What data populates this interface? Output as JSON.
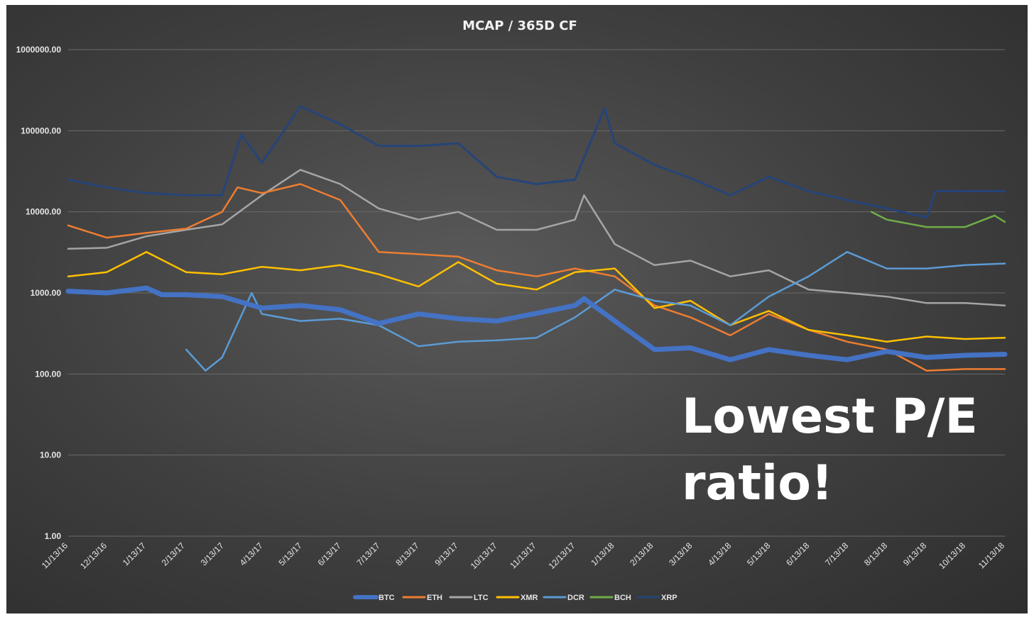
{
  "chart_data": {
    "type": "line",
    "title": "MCAP / 365D CF",
    "xlabel": "",
    "ylabel": "",
    "y_scale": "log",
    "ylim": [
      1,
      1000000
    ],
    "y_ticks": [
      "1000000.00",
      "100000.00",
      "10000.00",
      "1000.00",
      "100.00",
      "10.00",
      "1.00"
    ],
    "x_range": [
      "2016-11-13",
      "2018-11-13"
    ],
    "x_tick_labels": [
      "11/13/16",
      "12/13/16",
      "1/13/17",
      "2/13/17",
      "3/13/17",
      "4/13/17",
      "5/13/17",
      "6/13/17",
      "7/13/17",
      "8/13/17",
      "9/13/17",
      "10/13/17",
      "11/13/17",
      "12/13/17",
      "1/13/18",
      "2/13/18",
      "3/13/18",
      "4/13/18",
      "5/13/18",
      "6/13/18",
      "7/13/18",
      "8/13/18",
      "9/13/18",
      "10/13/18",
      "11/13/18"
    ],
    "grid": true,
    "legend_position": "bottom",
    "annotation": "Lowest P/E ratio!",
    "series": [
      {
        "name": "BTC",
        "color": "#4472c4",
        "width": 7,
        "x": [
          "2016-11-13",
          "2016-12-13",
          "2017-01-13",
          "2017-01-25",
          "2017-02-13",
          "2017-03-13",
          "2017-04-13",
          "2017-05-13",
          "2017-06-13",
          "2017-07-13",
          "2017-08-13",
          "2017-09-13",
          "2017-10-13",
          "2017-11-13",
          "2017-12-13",
          "2017-12-20",
          "2018-01-13",
          "2018-02-13",
          "2018-03-13",
          "2018-04-13",
          "2018-05-13",
          "2018-06-13",
          "2018-07-13",
          "2018-08-13",
          "2018-09-13",
          "2018-10-13",
          "2018-11-13"
        ],
        "y": [
          1050,
          1000,
          1150,
          950,
          950,
          900,
          650,
          700,
          620,
          420,
          550,
          480,
          450,
          560,
          700,
          850,
          450,
          200,
          210,
          150,
          200,
          170,
          150,
          190,
          160,
          170,
          175
        ]
      },
      {
        "name": "ETH",
        "color": "#ed7d31",
        "width": 2.5,
        "x": [
          "2016-11-13",
          "2016-12-13",
          "2017-01-13",
          "2017-02-13",
          "2017-03-13",
          "2017-03-25",
          "2017-04-13",
          "2017-05-13",
          "2017-06-13",
          "2017-07-13",
          "2017-08-13",
          "2017-09-13",
          "2017-10-13",
          "2017-11-13",
          "2017-12-13",
          "2018-01-13",
          "2018-02-13",
          "2018-03-13",
          "2018-04-13",
          "2018-05-13",
          "2018-06-13",
          "2018-07-13",
          "2018-08-13",
          "2018-09-13",
          "2018-10-13",
          "2018-11-13"
        ],
        "y": [
          6800,
          4800,
          5500,
          6200,
          10000,
          20000,
          17000,
          22000,
          14000,
          3200,
          3000,
          2800,
          1900,
          1600,
          2000,
          1600,
          700,
          500,
          300,
          550,
          350,
          250,
          200,
          110,
          115,
          115
        ]
      },
      {
        "name": "LTC",
        "color": "#a5a5a5",
        "width": 2.5,
        "x": [
          "2016-11-13",
          "2016-12-13",
          "2017-01-13",
          "2017-02-13",
          "2017-03-13",
          "2017-04-13",
          "2017-05-13",
          "2017-06-13",
          "2017-07-13",
          "2017-08-13",
          "2017-09-13",
          "2017-10-13",
          "2017-11-13",
          "2017-12-13",
          "2017-12-20",
          "2018-01-13",
          "2018-02-13",
          "2018-03-13",
          "2018-04-13",
          "2018-05-13",
          "2018-06-13",
          "2018-07-13",
          "2018-08-13",
          "2018-09-13",
          "2018-10-13",
          "2018-11-13"
        ],
        "y": [
          3500,
          3600,
          5000,
          6000,
          7000,
          16000,
          33000,
          22000,
          11000,
          8000,
          10000,
          6000,
          6000,
          8000,
          16000,
          4000,
          2200,
          2500,
          1600,
          1900,
          1100,
          1000,
          900,
          750,
          750,
          700
        ]
      },
      {
        "name": "XMR",
        "color": "#ffc000",
        "width": 2.5,
        "x": [
          "2016-11-13",
          "2016-12-13",
          "2017-01-13",
          "2017-02-13",
          "2017-03-13",
          "2017-04-13",
          "2017-05-13",
          "2017-06-13",
          "2017-07-13",
          "2017-08-13",
          "2017-09-13",
          "2017-10-13",
          "2017-11-13",
          "2017-12-13",
          "2018-01-13",
          "2018-02-13",
          "2018-03-13",
          "2018-04-13",
          "2018-05-13",
          "2018-06-13",
          "2018-07-13",
          "2018-08-13",
          "2018-09-13",
          "2018-10-13",
          "2018-11-13"
        ],
        "y": [
          1600,
          1800,
          3200,
          1800,
          1700,
          2100,
          1900,
          2200,
          1700,
          1200,
          2400,
          1300,
          1100,
          1800,
          2000,
          650,
          800,
          400,
          600,
          350,
          300,
          250,
          290,
          270,
          280
        ]
      },
      {
        "name": "DCR",
        "color": "#5b9bd5",
        "width": 2.5,
        "x": [
          "2017-02-13",
          "2017-02-28",
          "2017-03-13",
          "2017-04-05",
          "2017-04-13",
          "2017-05-13",
          "2017-06-13",
          "2017-07-13",
          "2017-08-13",
          "2017-09-13",
          "2017-10-13",
          "2017-11-13",
          "2017-12-13",
          "2018-01-13",
          "2018-02-13",
          "2018-03-13",
          "2018-04-13",
          "2018-05-13",
          "2018-06-13",
          "2018-07-13",
          "2018-08-13",
          "2018-09-13",
          "2018-10-13",
          "2018-11-13"
        ],
        "y": [
          200,
          110,
          160,
          1000,
          550,
          450,
          480,
          400,
          220,
          250,
          260,
          280,
          500,
          1100,
          800,
          700,
          400,
          900,
          1600,
          3200,
          2000,
          2000,
          2200,
          2300
        ]
      },
      {
        "name": "BCH",
        "color": "#70ad47",
        "width": 2.5,
        "x": [
          "2018-08-01",
          "2018-08-13",
          "2018-09-13",
          "2018-10-13",
          "2018-11-05",
          "2018-11-13"
        ],
        "y": [
          10000,
          8000,
          6500,
          6500,
          9000,
          7500
        ]
      },
      {
        "name": "XRP",
        "color": "#264478",
        "width": 3,
        "x": [
          "2016-11-13",
          "2016-12-13",
          "2017-01-13",
          "2017-02-13",
          "2017-03-13",
          "2017-03-28",
          "2017-04-13",
          "2017-05-13",
          "2017-06-13",
          "2017-07-13",
          "2017-08-13",
          "2017-09-13",
          "2017-10-13",
          "2017-11-13",
          "2017-12-13",
          "2018-01-05",
          "2018-01-13",
          "2018-02-13",
          "2018-03-13",
          "2018-04-13",
          "2018-05-13",
          "2018-06-13",
          "2018-07-13",
          "2018-08-13",
          "2018-09-13",
          "2018-09-20",
          "2018-10-13",
          "2018-11-13"
        ],
        "y": [
          25000,
          20000,
          17000,
          16000,
          16000,
          90000,
          40000,
          200000,
          120000,
          65000,
          65000,
          70000,
          27000,
          22000,
          25000,
          190000,
          70000,
          38000,
          26000,
          16000,
          27000,
          18000,
          14000,
          11000,
          8500,
          18000,
          18000,
          18000
        ]
      }
    ]
  }
}
